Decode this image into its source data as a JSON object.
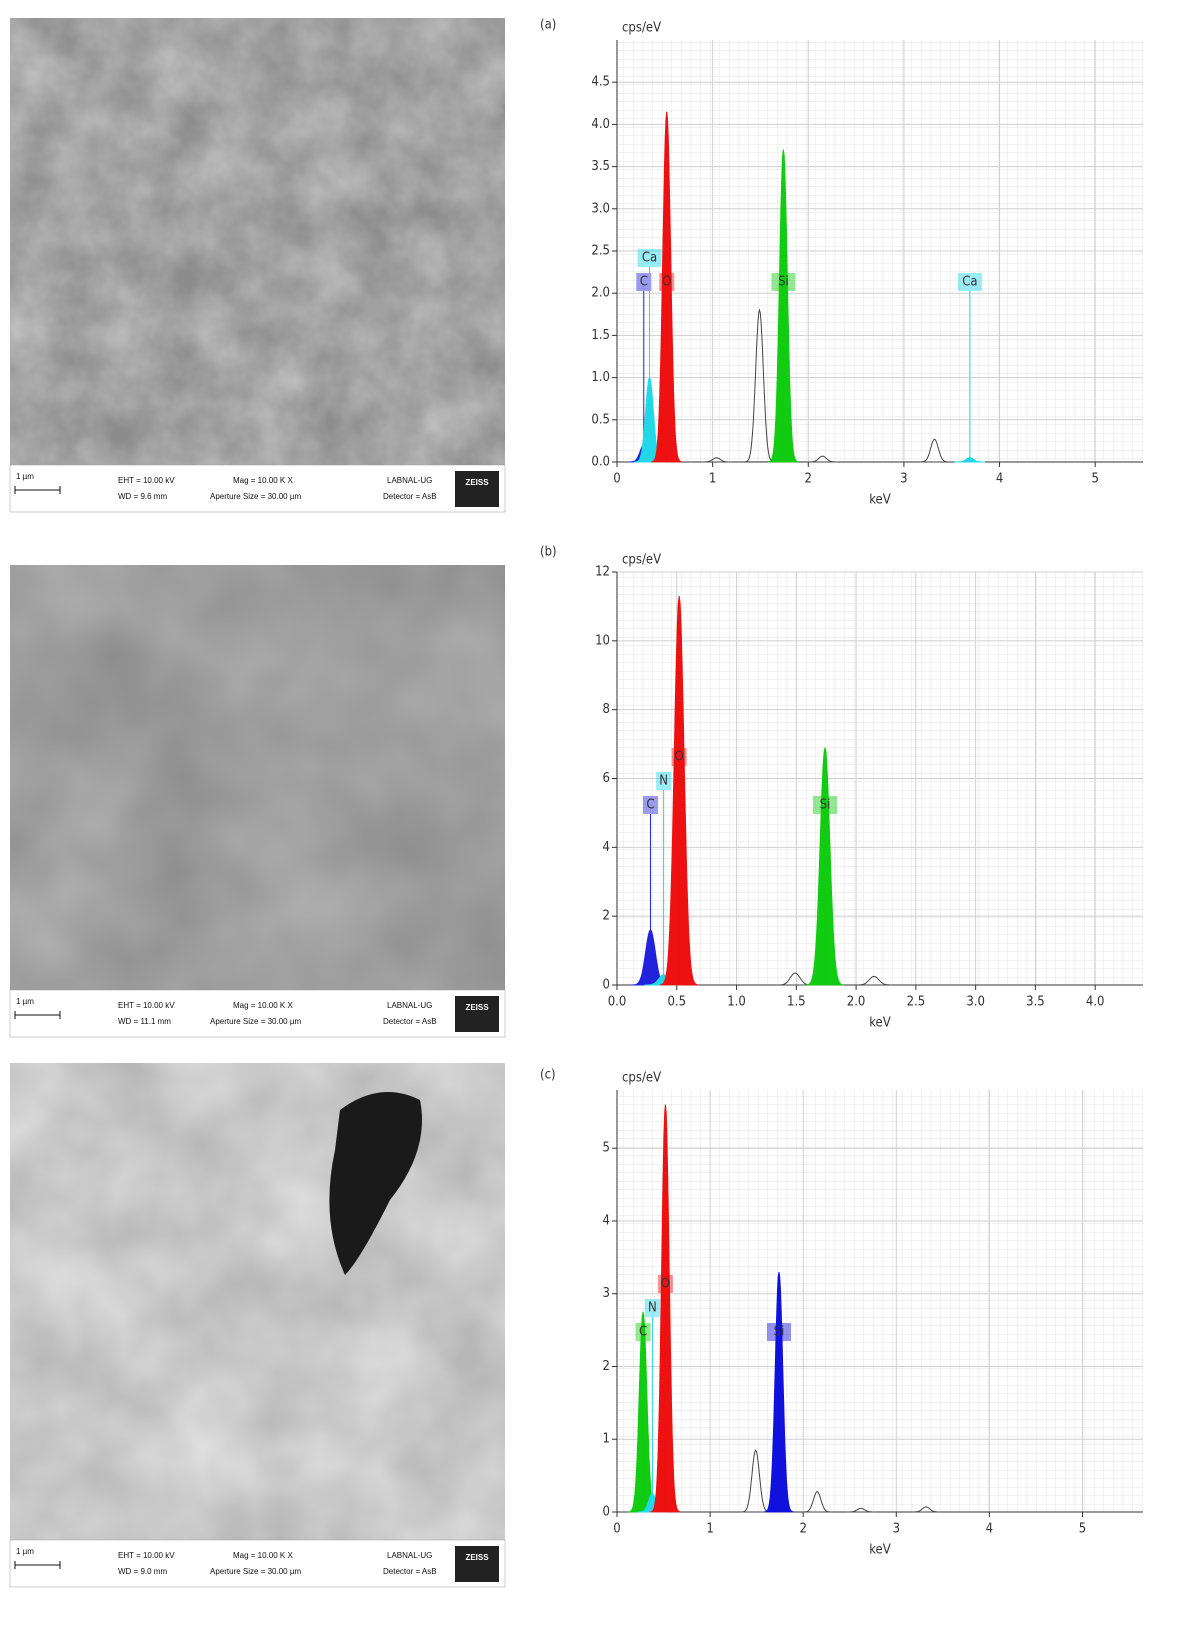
{
  "sem_images": [
    {
      "scale": "1 µm",
      "eht": "EHT = 10.00 kV",
      "wd": "WD = 9.6 mm",
      "mag": "Mag = 10.00 K X",
      "aperture": "Aperture Size = 30.00 µm",
      "lab": "LABNAL-UG",
      "detector": "Detector = AsB",
      "logo": "ZEISS"
    },
    {
      "scale": "1 µm",
      "eht": "EHT = 10.00 kV",
      "wd": "WD = 11.1 mm",
      "mag": "Mag = 10.00 K X",
      "aperture": "Aperture Size = 30.00 µm",
      "lab": "LABNAL-UG",
      "detector": "Detector = AsB",
      "logo": "ZEISS"
    },
    {
      "scale": "1 µm",
      "eht": "EHT = 10.00 kV",
      "wd": "WD = 9.0 mm",
      "mag": "Mag = 10.00 K X",
      "aperture": "Aperture Size = 30.00 µm",
      "lab": "LABNAL-UG",
      "detector": "Detector = AsB",
      "logo": "ZEISS"
    }
  ],
  "chart_data": [
    {
      "type": "spectrum",
      "panel_label": "(a)",
      "ylabel": "cps/eV",
      "xlabel": "keV",
      "xlim": [
        0,
        5.5
      ],
      "xticks": [
        0,
        1,
        2,
        3,
        4,
        5
      ],
      "ylim": [
        0,
        5.0
      ],
      "yticks": [
        {
          "value": 0,
          "label": "0.0"
        },
        0.5,
        {
          "value": 1,
          "label": "1.0"
        },
        1.5,
        {
          "value": 2,
          "label": "2.0"
        },
        2.5,
        {
          "value": 3,
          "label": "3.0"
        },
        3.5,
        {
          "value": 4,
          "label": "4.0"
        },
        4.5
      ],
      "grid": true,
      "peaks": [
        {
          "label": "C",
          "x": 0.28,
          "y": 0.2,
          "color": "#2222dd"
        },
        {
          "label": "Ca",
          "x": 0.34,
          "y": 1.0,
          "color": "#22d8e8"
        },
        {
          "label": "O",
          "x": 0.52,
          "y": 4.15,
          "color": "#ee1111"
        },
        {
          "label": null,
          "x": 1.04,
          "y": 0.05,
          "color": "#444444"
        },
        {
          "label": null,
          "x": 1.49,
          "y": 1.8,
          "color": "#444444"
        },
        {
          "label": "Si",
          "x": 1.74,
          "y": 3.7,
          "color": "#11cc11"
        },
        {
          "label": null,
          "x": 2.15,
          "y": 0.07,
          "color": "#444444"
        },
        {
          "label": null,
          "x": 3.32,
          "y": 0.27,
          "color": "#444444"
        },
        {
          "label": "Ca",
          "x": 3.69,
          "y": 0.05,
          "color": "#22d8e8"
        }
      ]
    },
    {
      "type": "spectrum",
      "panel_label": "(b)",
      "ylabel": "cps/eV",
      "xlabel": "keV",
      "xlim": [
        0,
        4.4
      ],
      "xticks": [
        {
          "value": 0,
          "label": "0.0"
        },
        0.5,
        {
          "value": 1,
          "label": "1.0"
        },
        1.5,
        {
          "value": 2,
          "label": "2.0"
        },
        2.5,
        {
          "value": 3,
          "label": "3.0"
        },
        3.5,
        {
          "value": 4,
          "label": "4.0"
        }
      ],
      "ylim": [
        0,
        12
      ],
      "yticks": [
        0,
        2,
        4,
        6,
        8,
        10,
        12
      ],
      "grid": true,
      "peaks": [
        {
          "label": "C",
          "x": 0.28,
          "y": 1.6,
          "color": "#2222dd"
        },
        {
          "label": "N",
          "x": 0.39,
          "y": 0.3,
          "color": "#22d8e8"
        },
        {
          "label": "O",
          "x": 0.52,
          "y": 11.3,
          "color": "#ee1111"
        },
        {
          "label": null,
          "x": 1.49,
          "y": 0.35,
          "color": "#444444"
        },
        {
          "label": "Si",
          "x": 1.74,
          "y": 6.9,
          "color": "#11cc11"
        },
        {
          "label": null,
          "x": 2.15,
          "y": 0.25,
          "color": "#444444"
        }
      ]
    },
    {
      "type": "spectrum",
      "panel_label": "(c)",
      "ylabel": "cps/eV",
      "xlabel": "keV",
      "xlim": [
        0,
        5.65
      ],
      "xticks": [
        0,
        1,
        2,
        3,
        4,
        5
      ],
      "ylim": [
        0,
        5.8
      ],
      "yticks": [
        0,
        1,
        2,
        3,
        4,
        5
      ],
      "grid": true,
      "peaks": [
        {
          "label": "C",
          "x": 0.28,
          "y": 2.75,
          "color": "#11cc11"
        },
        {
          "label": "N",
          "x": 0.38,
          "y": 0.25,
          "color": "#22d8e8"
        },
        {
          "label": "O",
          "x": 0.52,
          "y": 5.6,
          "color": "#ee1111"
        },
        {
          "label": null,
          "x": 1.49,
          "y": 0.85,
          "color": "#444444"
        },
        {
          "label": "Si",
          "x": 1.74,
          "y": 3.3,
          "color": "#1111dd"
        },
        {
          "label": null,
          "x": 2.15,
          "y": 0.28,
          "color": "#444444"
        },
        {
          "label": null,
          "x": 2.62,
          "y": 0.05,
          "color": "#444444"
        },
        {
          "label": null,
          "x": 3.32,
          "y": 0.07,
          "color": "#444444"
        }
      ]
    }
  ]
}
